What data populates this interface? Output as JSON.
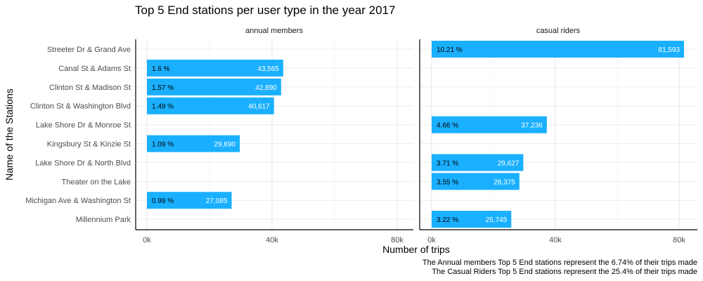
{
  "chart_data": {
    "type": "bar",
    "orientation": "horizontal",
    "title": "Top 5 End stations per user type in the year 2017",
    "xlabel": "Number of trips",
    "ylabel": "Name of the Stations",
    "xlim": [
      0,
      85000
    ],
    "x_ticks": [
      0,
      40000,
      80000
    ],
    "x_tick_labels": [
      "0k",
      "40k",
      "80k"
    ],
    "grid": true,
    "bar_color": "#1AB0FF",
    "categories": [
      "Streeter Dr & Grand Ave",
      "Canal St & Adams St",
      "Clinton St & Madison St",
      "Clinton St & Washington Blvd",
      "Lake Shore Dr & Monroe St",
      "Kingsbury St & Kinzie St",
      "Lake Shore Dr & North Blvd",
      "Theater on the Lake",
      "Michigan Ave & Washington St",
      "Millennium Park"
    ],
    "panels": [
      {
        "name": "annual members",
        "bars": [
          {
            "category": "Canal St & Adams St",
            "value": 43565,
            "value_label": "43,565",
            "pct_label": "1.6 %"
          },
          {
            "category": "Clinton St & Madison St",
            "value": 42890,
            "value_label": "42,890",
            "pct_label": "1.57 %"
          },
          {
            "category": "Clinton St & Washington Blvd",
            "value": 40617,
            "value_label": "40,617",
            "pct_label": "1.49 %"
          },
          {
            "category": "Kingsbury St & Kinzie St",
            "value": 29690,
            "value_label": "29,690",
            "pct_label": "1.09 %"
          },
          {
            "category": "Michigan Ave & Washington St",
            "value": 27085,
            "value_label": "27,085",
            "pct_label": "0.99 %"
          }
        ]
      },
      {
        "name": "casual riders",
        "bars": [
          {
            "category": "Streeter Dr & Grand Ave",
            "value": 81593,
            "value_label": "81,593",
            "pct_label": "10.21 %"
          },
          {
            "category": "Lake Shore Dr & Monroe St",
            "value": 37236,
            "value_label": "37,236",
            "pct_label": "4.66 %"
          },
          {
            "category": "Lake Shore Dr & North Blvd",
            "value": 29627,
            "value_label": "29,627",
            "pct_label": "3.71 %"
          },
          {
            "category": "Theater on the Lake",
            "value": 28375,
            "value_label": "28,375",
            "pct_label": "3.55 %"
          },
          {
            "category": "Millennium Park",
            "value": 25745,
            "value_label": "25,745",
            "pct_label": "3.22 %"
          }
        ]
      }
    ],
    "captions": [
      "The Annual members Top 5 End stations represent the 6.74% of their trips made",
      "The Casual Riders Top 5 End stations represent the 25.4% of their trips made"
    ]
  }
}
